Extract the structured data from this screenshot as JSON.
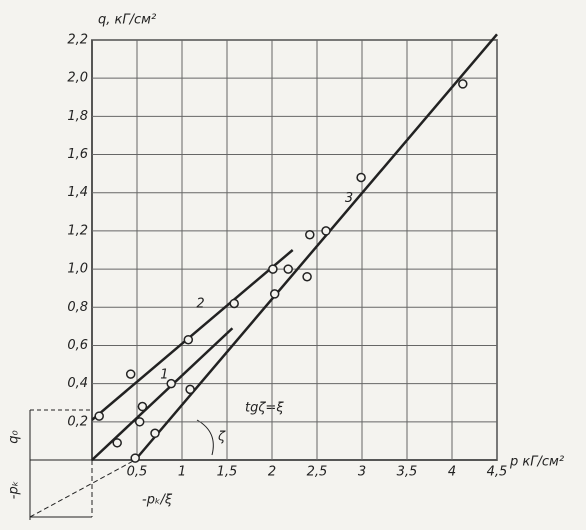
{
  "chart_data": {
    "type": "scatter",
    "y_label": "q, кГ/см²",
    "x_label": "p кГ/см²",
    "xlim": [
      0,
      4.5
    ],
    "ylim": [
      0,
      2.2
    ],
    "xticks": [
      {
        "value": 0.5,
        "label": "0,5"
      },
      1,
      {
        "value": 1.5,
        "label": "1,5"
      },
      2,
      {
        "value": 2.5,
        "label": "2,5"
      },
      3,
      {
        "value": 3.5,
        "label": "3,5"
      },
      4,
      {
        "value": 4.5,
        "label": "4,5"
      }
    ],
    "yticks": [
      {
        "value": 0.2,
        "label": "0,2"
      },
      {
        "value": 0.4,
        "label": "0,4"
      },
      {
        "value": 0.6,
        "label": "0,6"
      },
      {
        "value": 0.8,
        "label": "0,8"
      },
      {
        "value": 1.0,
        "label": "1,0"
      },
      {
        "value": 1.2,
        "label": "1,2"
      },
      {
        "value": 1.4,
        "label": "1,4"
      },
      {
        "value": 1.6,
        "label": "1,6"
      },
      {
        "value": 1.8,
        "label": "1,8"
      },
      {
        "value": 2.0,
        "label": "2,0"
      },
      {
        "value": 2.2,
        "label": "2,2"
      }
    ],
    "grid": true,
    "color": "#222",
    "x": [
      0.08,
      0.28,
      0.43,
      0.56,
      0.53,
      0.7,
      0.48,
      0.88,
      1.07,
      1.09,
      1.58,
      2.01,
      2.03,
      2.18,
      2.39,
      2.42,
      2.6,
      2.99,
      4.12
    ],
    "y": [
      0.23,
      0.09,
      0.45,
      0.28,
      0.2,
      0.14,
      0.01,
      0.4,
      0.63,
      0.37,
      0.82,
      1.0,
      0.87,
      1.0,
      0.96,
      1.18,
      1.2,
      1.48,
      1.97
    ],
    "lines": [
      {
        "label": "1",
        "x": [
          0,
          1.56
        ],
        "y": [
          0,
          0.69
        ]
      },
      {
        "label": "2",
        "x": [
          0,
          2.23
        ],
        "y": [
          0.21,
          1.1
        ]
      },
      {
        "label": "3",
        "x": [
          0.48,
          4.5
        ],
        "y": [
          0,
          2.23
        ]
      }
    ],
    "annotations": [
      "tgζ=ξ",
      "ζ",
      "q₀",
      "-pₖ",
      "-pₖ/ξ"
    ]
  }
}
